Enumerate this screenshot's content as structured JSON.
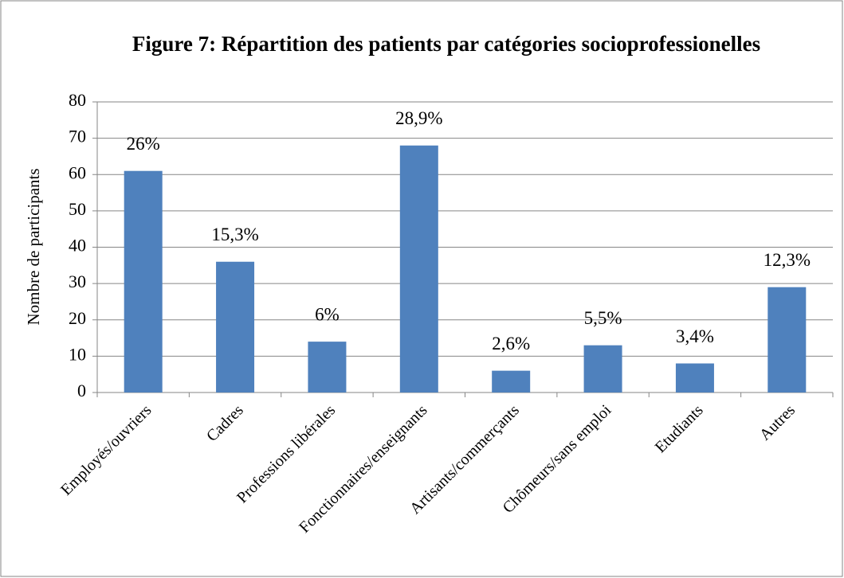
{
  "chart_data": {
    "type": "bar",
    "title": "Figure 7: Répartition des patients par catégories socioprofessionelles",
    "y_label": "Nombre de participants",
    "categories": [
      "Employés/ouvriers",
      "Cadres",
      "Professions libérales",
      "Fonctionnaires/enseignants",
      "Artisants/commerçants",
      "Chômeurs/sans emploi",
      "Etudiants",
      "Autres"
    ],
    "values": [
      61,
      36,
      14,
      68,
      6,
      13,
      8,
      29
    ],
    "annotations": [
      "26%",
      "15,3%",
      "6%",
      "28,9%",
      "2,6%",
      "5,5%",
      "3,4%",
      "12,3%"
    ],
    "color": "#4f81bd",
    "ylim": [
      0,
      80
    ],
    "yticks": [
      0,
      10,
      20,
      30,
      40,
      50,
      60,
      70,
      80
    ],
    "grid": true
  }
}
